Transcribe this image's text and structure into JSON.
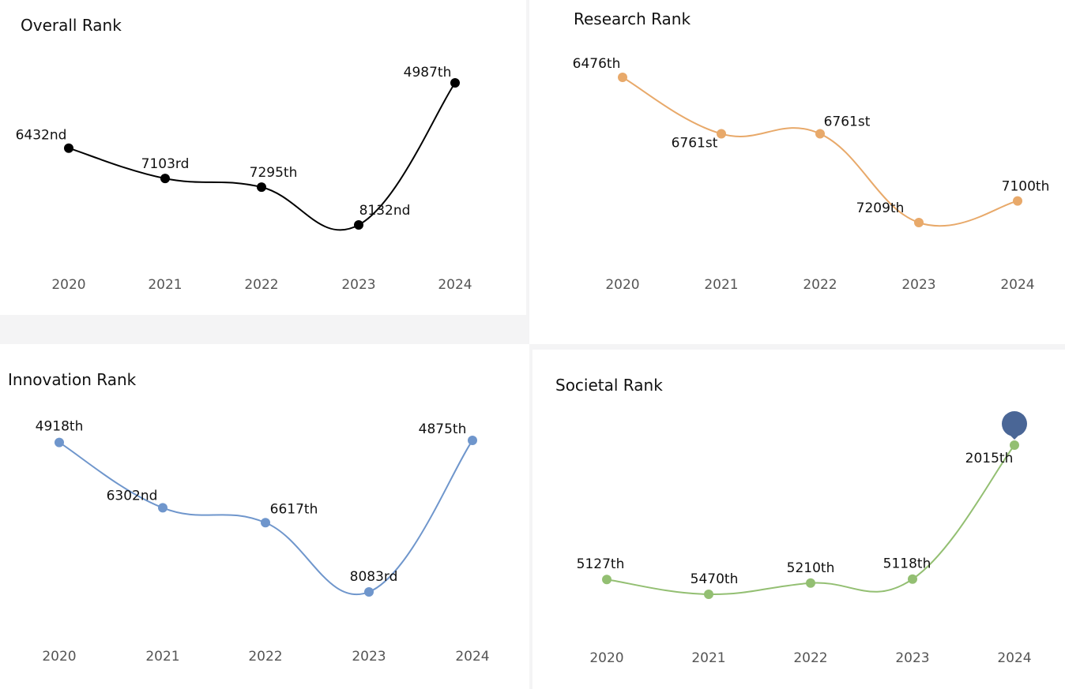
{
  "chart_data": [
    {
      "type": "line",
      "title": "Overall Rank",
      "color": "#000000",
      "x": [
        "2020",
        "2021",
        "2022",
        "2023",
        "2024"
      ],
      "values": [
        6432,
        7103,
        7295,
        8132,
        4987
      ],
      "labels": [
        "6432nd",
        "7103rd",
        "7295th",
        "8132nd",
        "4987th"
      ],
      "axis": "rank, inverted (best rank at top)",
      "ylim": [
        8132,
        4987
      ],
      "grid": false
    },
    {
      "type": "line",
      "title": "Research Rank",
      "color": "#e8a96a",
      "x": [
        "2020",
        "2021",
        "2022",
        "2023",
        "2024"
      ],
      "values": [
        6476,
        6761,
        6761,
        7209,
        7100
      ],
      "labels": [
        "6476th",
        "6761st",
        "6761st",
        "7209th",
        "7100th"
      ],
      "axis": "rank, inverted (best rank at top)",
      "ylim": [
        7209,
        6476
      ],
      "grid": false
    },
    {
      "type": "line",
      "title": "Innovation Rank",
      "color": "#6f96cc",
      "x": [
        "2020",
        "2021",
        "2022",
        "2023",
        "2024"
      ],
      "values": [
        4918,
        6302,
        6617,
        8083,
        4875
      ],
      "labels": [
        "4918th",
        "6302nd",
        "6617th",
        "8083rd",
        "4875th"
      ],
      "axis": "rank, inverted (best rank at top)",
      "ylim": [
        8083,
        4875
      ],
      "grid": false
    },
    {
      "type": "line",
      "title": "Societal Rank",
      "color": "#93bf72",
      "x": [
        "2020",
        "2021",
        "2022",
        "2023",
        "2024"
      ],
      "values": [
        5127,
        5470,
        5210,
        5118,
        2015
      ],
      "labels": [
        "5127th",
        "5470th",
        "5210th",
        "5118th",
        "2015th"
      ],
      "axis": "rank, inverted (best rank at top)",
      "ylim": [
        5470,
        2015
      ],
      "grid": false,
      "marker": {
        "index": 4,
        "color": "#4a6696",
        "icon": "map-pin-icon"
      }
    }
  ]
}
